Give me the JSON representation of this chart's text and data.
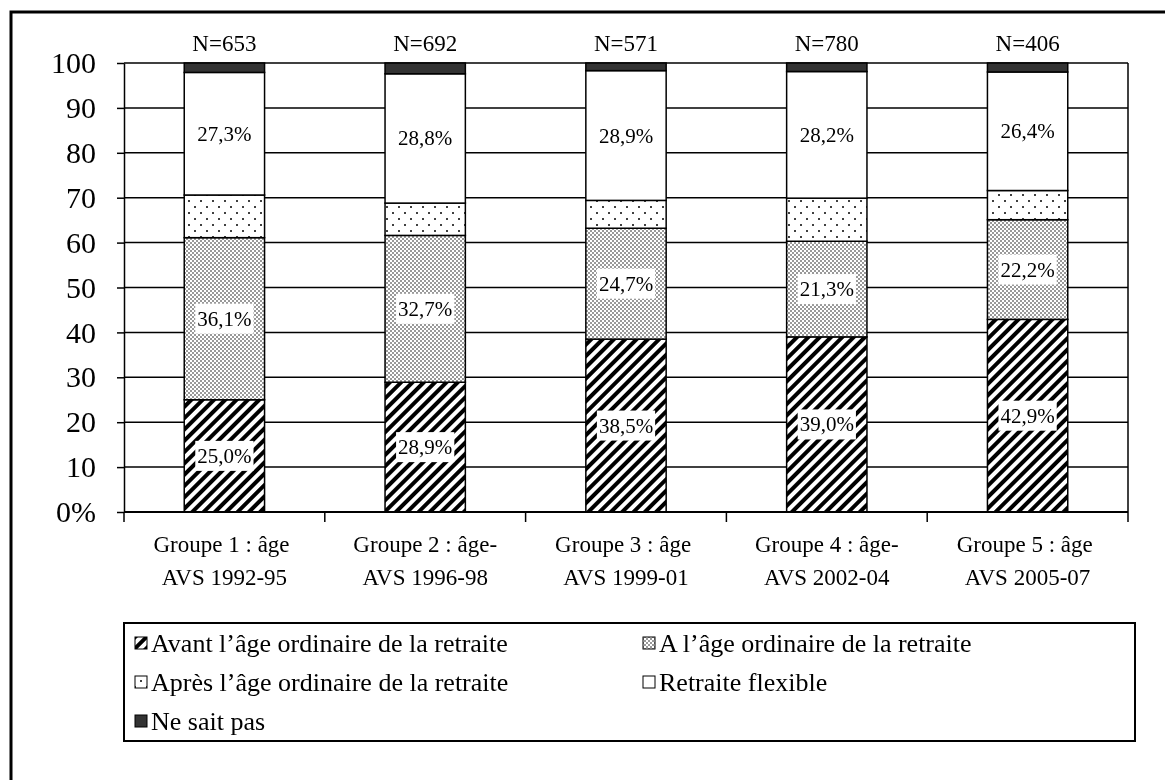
{
  "chart_data": {
    "type": "bar",
    "stacked": true,
    "categories": [
      "Groupe 1 : âge AVS 1992-95",
      "Groupe 2 : âge-AVS 1996-98",
      "Groupe 3 : âge AVS 1999-01",
      "Groupe 4 : âge-AVS 2002-04",
      "Groupe 5 : âge AVS 2005-07"
    ],
    "series": [
      {
        "name": "Avant l’âge ordinaire de la retraite",
        "color": "#000000",
        "values": [
          25.0,
          28.9,
          38.5,
          39.0,
          42.9
        ],
        "value_labels": [
          "25,0%",
          "28,9%",
          "38,5%",
          "39,0%",
          "42,9%"
        ]
      },
      {
        "name": "A l’âge ordinaire de la retraite",
        "color": "#000000",
        "values": [
          36.1,
          32.7,
          24.7,
          21.3,
          22.2
        ],
        "value_labels": [
          "36,1%",
          "32,7%",
          "24,7%",
          "21,3%",
          "22,2%"
        ]
      },
      {
        "name": "Après l’âge ordinaire de la retraite",
        "color": "#000000",
        "values": [
          9.5,
          7.2,
          6.2,
          9.6,
          6.5
        ]
      },
      {
        "name": "Retraite flexible",
        "color": "#ffffff",
        "values": [
          27.3,
          28.8,
          28.9,
          28.2,
          26.4
        ],
        "value_labels": [
          "27,3%",
          "28,8%",
          "28,9%",
          "28,2%",
          "26,4%"
        ]
      },
      {
        "name": "Ne sait pas",
        "color": "#333333",
        "values": [
          2.1,
          2.4,
          1.7,
          1.9,
          2.0
        ]
      }
    ],
    "ylim": [
      0,
      100
    ],
    "yticks": [
      {
        "value": 0,
        "label": "0%"
      },
      10,
      20,
      30,
      40,
      50,
      60,
      70,
      80,
      90,
      100
    ],
    "grid": "y",
    "legend": "bottom",
    "annotations": [
      {
        "text": "N=653",
        "x": "Groupe 1 : âge AVS 1992-95",
        "y": 100
      },
      {
        "text": "N=692",
        "x": "Groupe 2 : âge-AVS 1996-98",
        "y": 100
      },
      {
        "text": "N=571",
        "x": "Groupe 3 : âge AVS 1999-01",
        "y": 100
      },
      {
        "text": "N=780",
        "x": "Groupe 4 : âge-AVS 2002-04",
        "y": 100
      },
      {
        "text": "N=406",
        "x": "Groupe 5 : âge AVS 2005-07",
        "y": 100
      }
    ]
  }
}
